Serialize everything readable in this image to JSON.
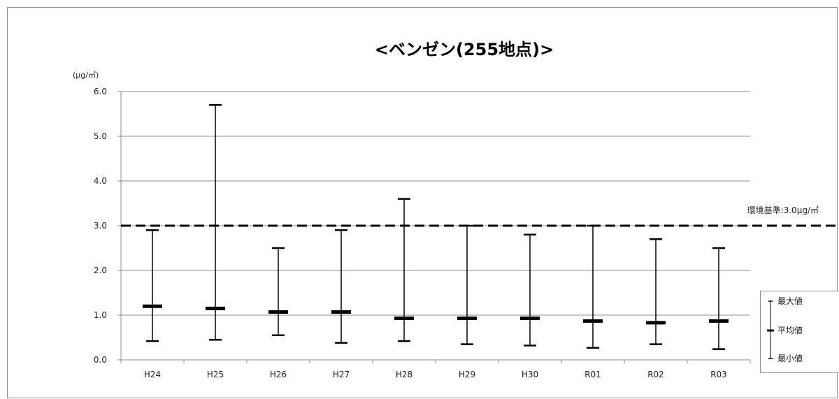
{
  "chart_data": {
    "type": "range",
    "title": "<ベンゼン(255地点)>",
    "ylabel": "(µg/㎥)",
    "ylim": [
      0,
      6
    ],
    "yticks": [
      "0.0",
      "1.0",
      "2.0",
      "3.0",
      "4.0",
      "5.0",
      "6.0"
    ],
    "grid": true,
    "categories": [
      "H24",
      "H25",
      "H26",
      "H27",
      "H28",
      "H29",
      "H30",
      "R01",
      "R02",
      "R03"
    ],
    "series": [
      {
        "name": "最大値",
        "values": [
          2.9,
          5.7,
          2.5,
          2.9,
          3.6,
          3.0,
          2.8,
          3.0,
          2.7,
          2.5
        ]
      },
      {
        "name": "平均値",
        "values": [
          1.2,
          1.15,
          1.07,
          1.07,
          0.93,
          0.93,
          0.93,
          0.87,
          0.83,
          0.87
        ]
      },
      {
        "name": "最小値",
        "values": [
          0.42,
          0.45,
          0.55,
          0.38,
          0.42,
          0.35,
          0.32,
          0.27,
          0.35,
          0.24
        ]
      }
    ],
    "reference_line": {
      "value": 3.0,
      "label": "環境基準:3.0µg/㎥"
    },
    "legend_position": "right"
  }
}
